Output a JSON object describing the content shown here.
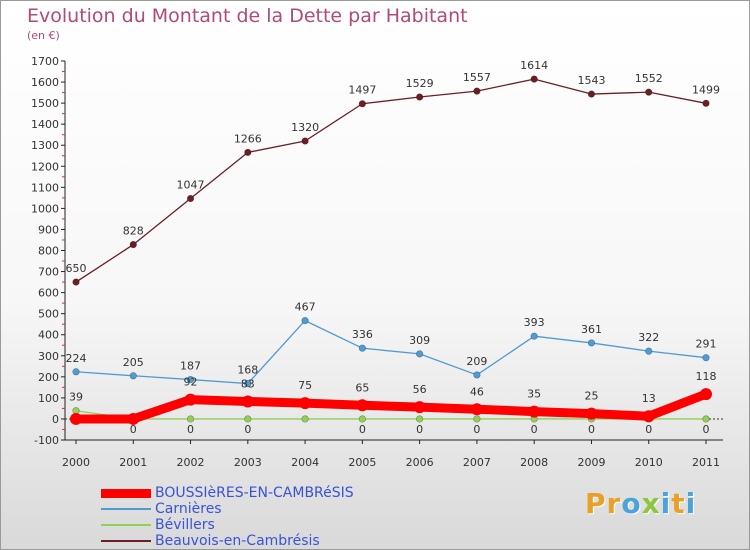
{
  "title": "Evolution du Montant de la Dette par Habitant",
  "unit": "(en €)",
  "brand": {
    "text": "Proxiti",
    "colors": [
      "#e8a028",
      "#e8a028",
      "#4ca3d9",
      "#8cc63f",
      "#4ca3d9",
      "#e8a028",
      "#4ca3d9"
    ]
  },
  "chart_data": {
    "type": "line",
    "x": [
      "2000",
      "2001",
      "2002",
      "2003",
      "2004",
      "2005",
      "2006",
      "2007",
      "2008",
      "2009",
      "2010",
      "2011"
    ],
    "ylim": [
      -100,
      1700
    ],
    "yticks": [
      -100,
      0,
      100,
      200,
      300,
      400,
      500,
      600,
      700,
      800,
      900,
      1000,
      1100,
      1200,
      1300,
      1400,
      1500,
      1600,
      1700
    ],
    "grid": false,
    "legend": "bottom-left",
    "series": [
      {
        "name": "BOUSSIèRES-EN-CAMBRéSIS",
        "color": "#ff0000",
        "values": [
          0,
          0,
          92,
          83,
          75,
          65,
          56,
          46,
          35,
          25,
          13,
          118
        ],
        "labels": [
          "",
          "",
          "92",
          "83",
          "75",
          "65",
          "56",
          "46",
          "35",
          "25",
          "13",
          "118"
        ]
      },
      {
        "name": "Carnières",
        "color": "#4f9bd4",
        "values": [
          224,
          205,
          187,
          168,
          467,
          336,
          309,
          209,
          393,
          361,
          322,
          291
        ],
        "labels": [
          "224",
          "205",
          "187",
          "168",
          "467",
          "336",
          "309",
          "209",
          "393",
          "361",
          "322",
          "291"
        ]
      },
      {
        "name": "Bévillers",
        "color": "#8ed05a",
        "values": [
          39,
          0,
          0,
          0,
          0,
          0,
          0,
          0,
          0,
          0,
          0,
          0
        ],
        "labels": [
          "39",
          "0",
          "0",
          "0",
          "",
          "0",
          "0",
          "0",
          "0",
          "0",
          "0",
          "0"
        ]
      },
      {
        "name": "Beauvois-en-Cambrésis",
        "color": "#6b1f24",
        "values": [
          650,
          828,
          1047,
          1266,
          1320,
          1497,
          1529,
          1557,
          1614,
          1543,
          1552,
          1499
        ],
        "labels": [
          "650",
          "828",
          "1047",
          "1266",
          "1320",
          "1497",
          "1529",
          "1557",
          "1614",
          "1543",
          "1552",
          "1499"
        ]
      }
    ]
  }
}
